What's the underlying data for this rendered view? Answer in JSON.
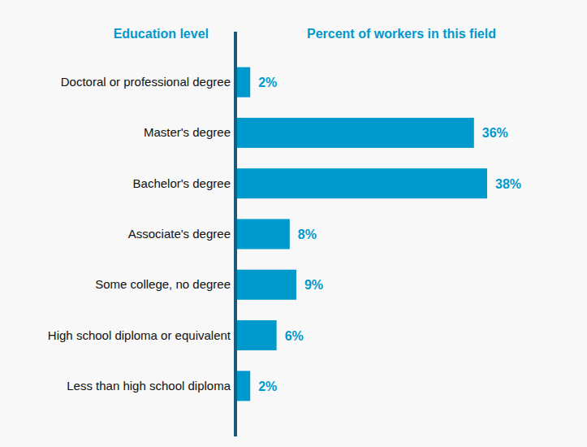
{
  "chart_data": {
    "type": "bar",
    "orientation": "horizontal",
    "ylabel": "Education level",
    "xlabel": "Percent of workers in this field",
    "categories": [
      "Doctoral or professional degree",
      "Master's degree",
      "Bachelor's degree",
      "Associate's degree",
      "Some college, no degree",
      "High school diploma or equivalent",
      "Less than high school diploma"
    ],
    "values": [
      2,
      36,
      38,
      8,
      9,
      6,
      2
    ],
    "value_labels": [
      "2%",
      "36%",
      "38%",
      "8%",
      "9%",
      "6%",
      "2%"
    ],
    "color": "#0099cc",
    "xlim": [
      0,
      38
    ],
    "grid": false,
    "data_labels": true,
    "tick_labels": "y"
  }
}
